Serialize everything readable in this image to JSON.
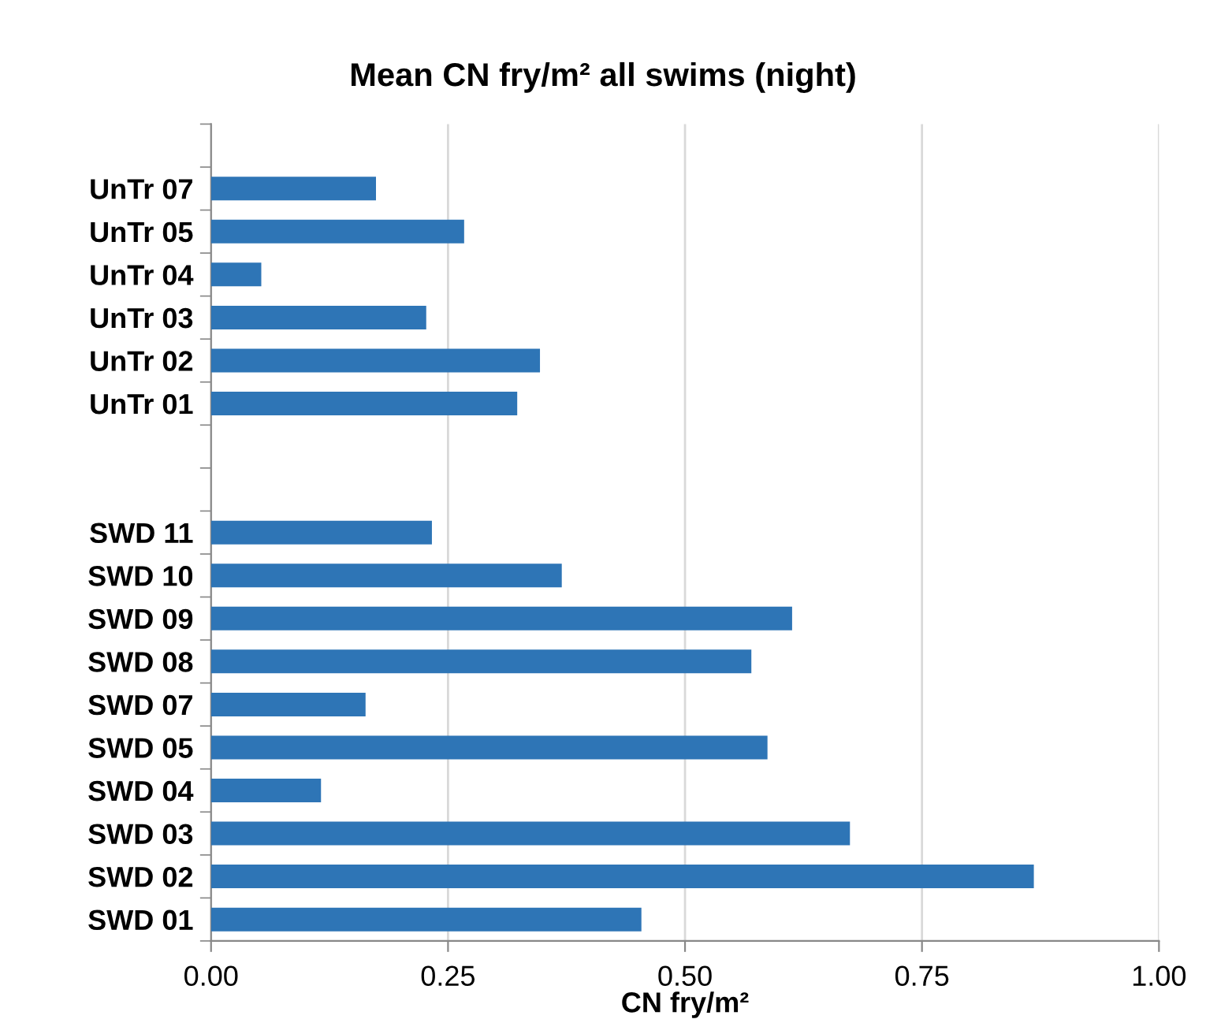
{
  "chart_data": {
    "type": "bar",
    "orientation": "horizontal",
    "title": "Mean CN fry/m² all swims (night)",
    "xlabel": "CN fry/m²",
    "categories": [
      null,
      "UnTr 07",
      "UnTr 05",
      "UnTr 04",
      "UnTr 03",
      "UnTr 02",
      "UnTr 01",
      null,
      null,
      "SWD 11",
      "SWD 10",
      "SWD 09",
      "SWD 08",
      "SWD 07",
      "SWD 05",
      "SWD 04",
      "SWD 03",
      "SWD 02",
      "SWD 01"
    ],
    "values": [
      null,
      0.174,
      0.267,
      0.053,
      0.227,
      0.347,
      0.323,
      null,
      null,
      0.233,
      0.37,
      0.613,
      0.57,
      0.163,
      0.587,
      0.116,
      0.674,
      0.868,
      0.454
    ],
    "color": "#2e75b6",
    "xlim": [
      0,
      1
    ],
    "xticks": [
      {
        "value": 0,
        "label": "0.00"
      },
      {
        "value": 0.25,
        "label": "0.25"
      },
      {
        "value": 0.5,
        "label": "0.50"
      },
      {
        "value": 0.75,
        "label": "0.75"
      },
      {
        "value": 1,
        "label": "1.00"
      }
    ],
    "grid": "x"
  }
}
